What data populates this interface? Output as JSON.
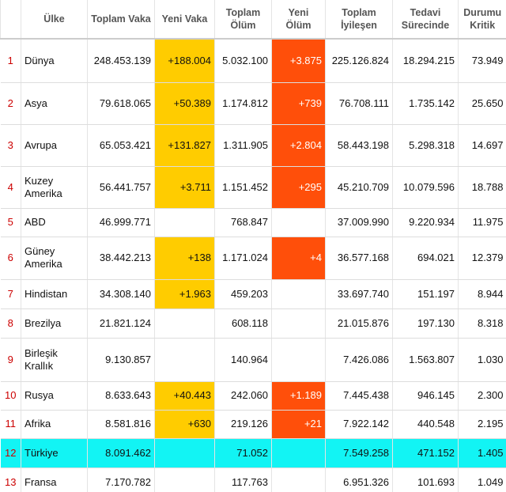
{
  "table": {
    "headers": [
      null,
      "Ülke",
      "Toplam Vaka",
      "Yeni Vaka",
      "Toplam Ölüm",
      "Yeni Ölüm",
      "Toplam İyileşen",
      "Tedavi Sürecinde",
      "Durumu Kritik"
    ],
    "rows": [
      [
        "1",
        "Dünya",
        "248.453.139",
        "+188.004",
        "5.032.100",
        "+3.875",
        "225.126.824",
        "18.294.215",
        "73.949"
      ],
      [
        "2",
        "Asya",
        "79.618.065",
        "+50.389",
        "1.174.812",
        "+739",
        "76.708.111",
        "1.735.142",
        "25.650"
      ],
      [
        "3",
        "Avrupa",
        "65.053.421",
        "+131.827",
        "1.311.905",
        "+2.804",
        "58.443.198",
        "5.298.318",
        "14.697"
      ],
      [
        "4",
        "Kuzey Amerika",
        "56.441.757",
        "+3.711",
        "1.151.452",
        "+295",
        "45.210.709",
        "10.079.596",
        "18.788"
      ],
      [
        "5",
        "ABD",
        "46.999.771",
        null,
        "768.847",
        null,
        "37.009.990",
        "9.220.934",
        "11.975"
      ],
      [
        "6",
        "Güney Amerika",
        "38.442.213",
        "+138",
        "1.171.024",
        "+4",
        "36.577.168",
        "694.021",
        "12.379"
      ],
      [
        "7",
        "Hindistan",
        "34.308.140",
        "+1.963",
        "459.203",
        null,
        "33.697.740",
        "151.197",
        "8.944"
      ],
      [
        "8",
        "Brezilya",
        "21.821.124",
        null,
        "608.118",
        null,
        "21.015.876",
        "197.130",
        "8.318"
      ],
      [
        "9",
        "Birleşik Krallık",
        "9.130.857",
        null,
        "140.964",
        null,
        "7.426.086",
        "1.563.807",
        "1.030"
      ],
      [
        "10",
        "Rusya",
        "8.633.643",
        "+40.443",
        "242.060",
        "+1.189",
        "7.445.438",
        "946.145",
        "2.300"
      ],
      [
        "11",
        "Afrika",
        "8.581.816",
        "+630",
        "219.126",
        "+21",
        "7.922.142",
        "440.548",
        "2.195"
      ],
      [
        "12",
        "Türkiye",
        "8.091.462",
        null,
        "71.052",
        null,
        "7.549.258",
        "471.152",
        "1.405"
      ],
      [
        "13",
        "Fransa",
        "7.170.782",
        null,
        "117.763",
        null,
        "6.951.326",
        "101.693",
        "1.049"
      ]
    ]
  }
}
